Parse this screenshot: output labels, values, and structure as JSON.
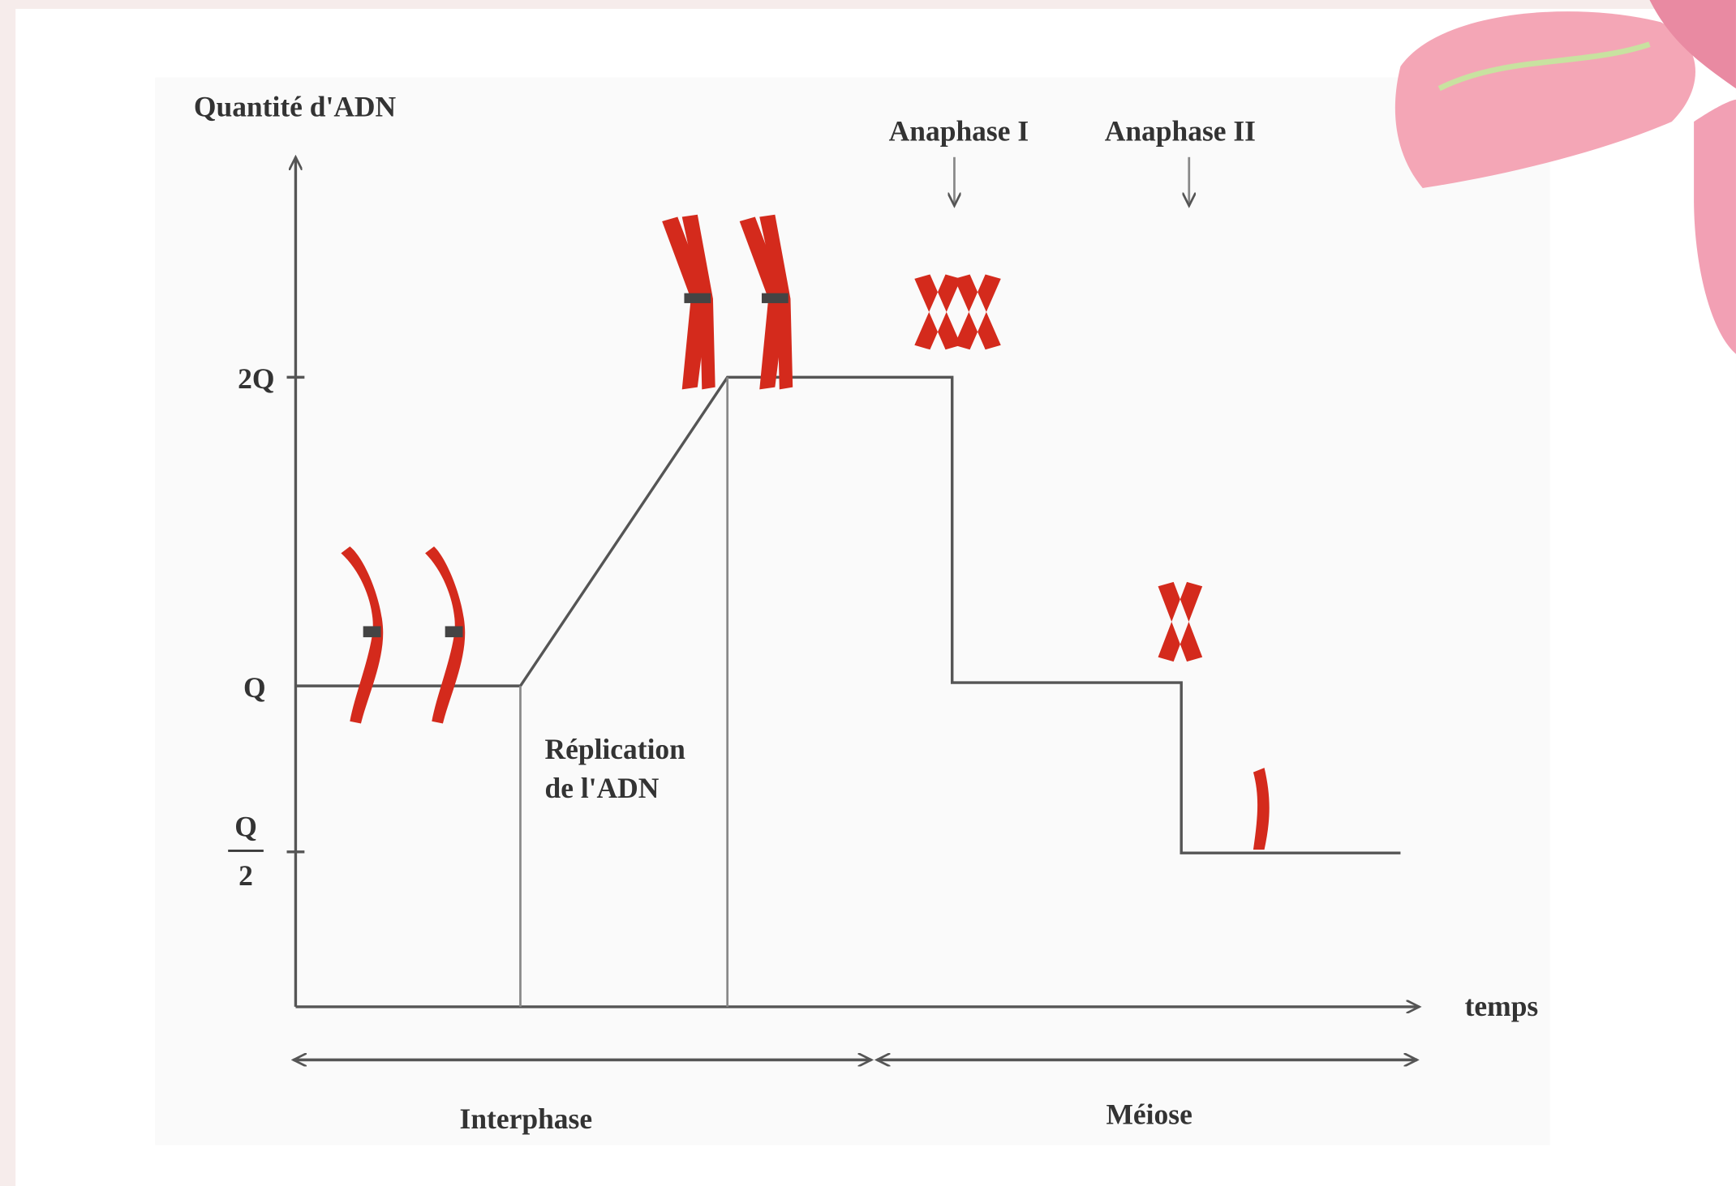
{
  "y_axis": {
    "label": "Quantité d'ADN",
    "ticks": [
      "2Q",
      "Q",
      {
        "numerator": "Q",
        "denominator": "2"
      }
    ]
  },
  "x_axis": {
    "label": "temps"
  },
  "annotations": {
    "anaphase_1": "Anaphase I",
    "anaphase_2": "Anaphase II",
    "replication": [
      "Réplication",
      "de l'ADN"
    ]
  },
  "phases": [
    "Interphase",
    "Méiose"
  ]
}
